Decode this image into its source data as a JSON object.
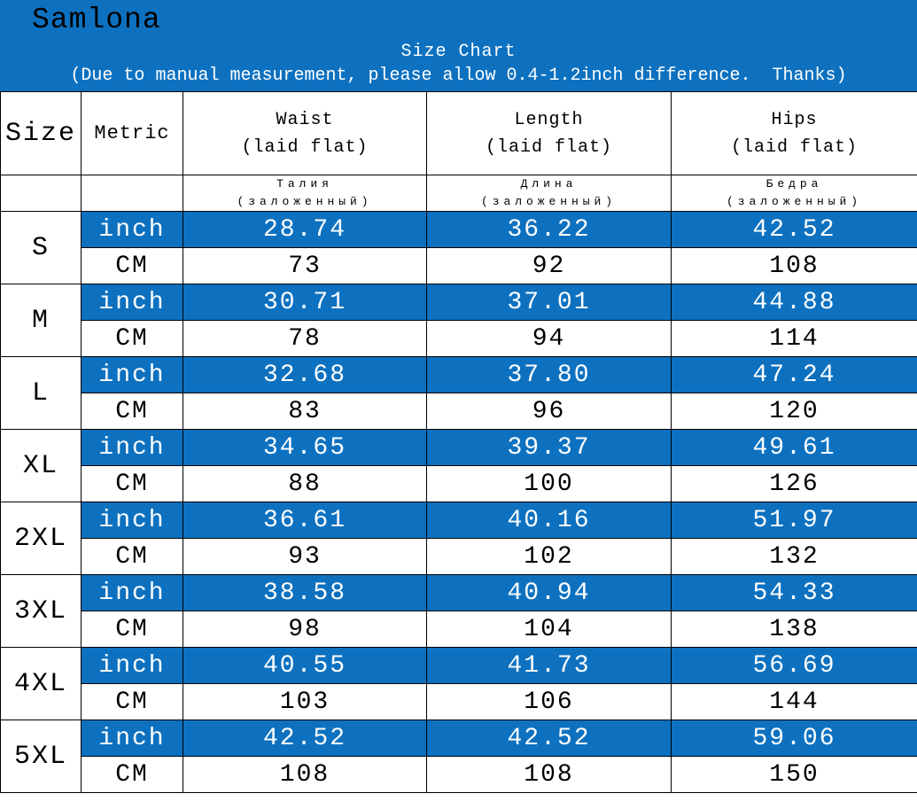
{
  "brand": "Samlona",
  "banner": {
    "title": "Size Chart",
    "note": "(Due to manual measurement, please allow 0.4-1.2inch difference.  Thanks)"
  },
  "colors": {
    "banner_blue": "#0d71c0",
    "inch_row_blue": "#0d71c0",
    "text_dark": "#000000",
    "text_light": "#ffffff"
  },
  "chart_data": {
    "type": "table",
    "title": "Size Chart",
    "header": {
      "size_label": "Size",
      "metric_label": "Metric",
      "measures": [
        {
          "en": "Waist",
          "en_sub": "(laid flat)",
          "ru": "Талия",
          "ru_sub": "(заложенный)"
        },
        {
          "en": "Length",
          "en_sub": "(laid flat)",
          "ru": "Длина",
          "ru_sub": "(заложенный)"
        },
        {
          "en": "Hips",
          "en_sub": "(laid flat)",
          "ru": "Бедра",
          "ru_sub": "(заложенный)"
        }
      ],
      "units": {
        "inch": "inch",
        "cm": "CM"
      }
    },
    "rows": [
      {
        "size": "S",
        "inch": [
          "28.74",
          "36.22",
          "42.52"
        ],
        "cm": [
          "73",
          "92",
          "108"
        ]
      },
      {
        "size": "M",
        "inch": [
          "30.71",
          "37.01",
          "44.88"
        ],
        "cm": [
          "78",
          "94",
          "114"
        ]
      },
      {
        "size": "L",
        "inch": [
          "32.68",
          "37.80",
          "47.24"
        ],
        "cm": [
          "83",
          "96",
          "120"
        ]
      },
      {
        "size": "XL",
        "inch": [
          "34.65",
          "39.37",
          "49.61"
        ],
        "cm": [
          "88",
          "100",
          "126"
        ]
      },
      {
        "size": "2XL",
        "inch": [
          "36.61",
          "40.16",
          "51.97"
        ],
        "cm": [
          "93",
          "102",
          "132"
        ]
      },
      {
        "size": "3XL",
        "inch": [
          "38.58",
          "40.94",
          "54.33"
        ],
        "cm": [
          "98",
          "104",
          "138"
        ]
      },
      {
        "size": "4XL",
        "inch": [
          "40.55",
          "41.73",
          "56.69"
        ],
        "cm": [
          "103",
          "106",
          "144"
        ]
      },
      {
        "size": "5XL",
        "inch": [
          "42.52",
          "42.52",
          "59.06"
        ],
        "cm": [
          "108",
          "108",
          "150"
        ]
      }
    ]
  }
}
